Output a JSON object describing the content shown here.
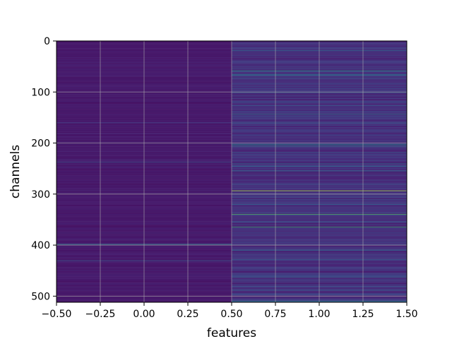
{
  "chart_data": {
    "type": "heatmap",
    "title": "",
    "xlabel": "features",
    "ylabel": "channels",
    "xlim": [
      -0.5,
      1.5
    ],
    "ylim": [
      512,
      0
    ],
    "y_inverted": true,
    "grid": true,
    "colormap": "viridis",
    "x_ticks": [
      -0.5,
      -0.25,
      0.0,
      0.25,
      0.5,
      0.75,
      1.0,
      1.25,
      1.5
    ],
    "x_tick_labels": [
      "−0.50",
      "−0.25",
      "0.00",
      "0.25",
      "0.50",
      "0.75",
      "1.00",
      "1.25",
      "1.50"
    ],
    "y_ticks": [
      0,
      100,
      200,
      300,
      400,
      500
    ],
    "y_tick_labels": [
      "0",
      "100",
      "200",
      "300",
      "400",
      "500"
    ],
    "n_columns": 2,
    "n_rows": 512,
    "column_baseline": [
      0.06,
      0.1
    ],
    "highlights": [
      {
        "column": 1,
        "rows": [
          293
        ],
        "value": 0.93
      },
      {
        "column": 1,
        "rows": [
          339
        ],
        "value": 0.82
      },
      {
        "column": 1,
        "rows": [
          364
        ],
        "value": 0.78
      },
      {
        "column": 1,
        "rows": [
          58
        ],
        "value": 0.68
      },
      {
        "column": 1,
        "rows": [
          66
        ],
        "value": 0.62
      },
      {
        "column": 1,
        "rows": [
          202
        ],
        "value": 0.6
      },
      {
        "column": 1,
        "rows": [
          205
        ],
        "value": 0.52
      },
      {
        "column": 1,
        "rows": [
          143
        ],
        "value": 0.5
      },
      {
        "column": 1,
        "rows": [
          254
        ],
        "value": 0.48
      },
      {
        "column": 1,
        "rows": [
          18
        ],
        "value": 0.42
      },
      {
        "column": 1,
        "rows": [
          100
        ],
        "value": 0.4
      },
      {
        "column": 1,
        "rows": [
          160
        ],
        "value": 0.38
      },
      {
        "column": 1,
        "rows": [
          240
        ],
        "value": 0.4
      },
      {
        "column": 1,
        "rows": [
          320
        ],
        "value": 0.36
      },
      {
        "column": 1,
        "rows": [
          410
        ],
        "value": 0.42
      },
      {
        "column": 1,
        "rows": [
          462
        ],
        "value": 0.45
      },
      {
        "column": 1,
        "rows": [
          488
        ],
        "value": 0.4
      },
      {
        "column": 1,
        "rows": [
          509
        ],
        "value": 0.5
      },
      {
        "column": 0,
        "rows": [
          398
        ],
        "value": 0.55
      },
      {
        "column": 0,
        "rows": [
          430
        ],
        "value": 0.35
      },
      {
        "column": 0,
        "rows": [
          237
        ],
        "value": 0.3
      },
      {
        "column": 0,
        "rows": [
          160
        ],
        "value": 0.25
      }
    ]
  }
}
